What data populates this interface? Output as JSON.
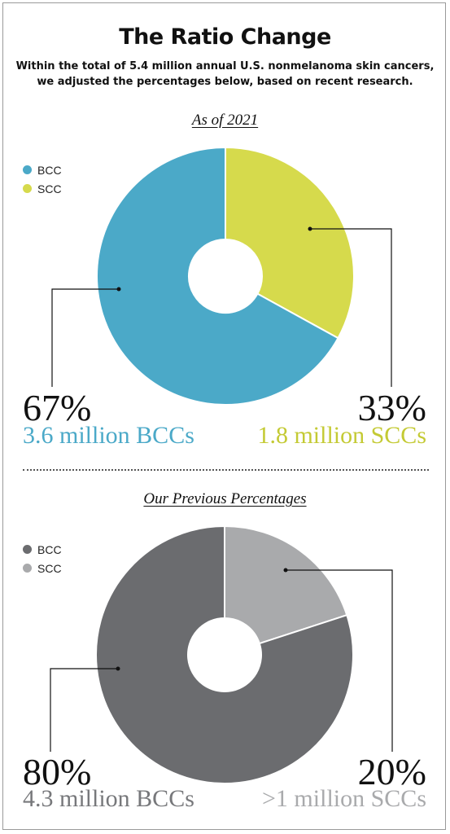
{
  "header": {
    "title": "The Ratio Change",
    "subtitle_line1": "Within the total of 5.4 million annual U.S. nonmelanoma skin cancers,",
    "subtitle_line2": "we adjusted the percentages below, based on recent research."
  },
  "chart_data": [
    {
      "type": "pie",
      "title": "As of 2021",
      "categories": [
        "BCC",
        "SCC"
      ],
      "values": [
        67,
        33
      ],
      "colors": [
        "#4ba9c8",
        "#d6da4c"
      ],
      "legend": [
        "BCC",
        "SCC"
      ],
      "legend_position": "top-left",
      "labels": [
        {
          "percent": "67%",
          "detail": "3.6 million BCCs",
          "color": "#4ba9c8"
        },
        {
          "percent": "33%",
          "detail": "1.8 million SCCs",
          "color": "#c4ca34"
        }
      ]
    },
    {
      "type": "pie",
      "title": "Our Previous Percentages",
      "categories": [
        "BCC",
        "SCC"
      ],
      "values": [
        80,
        20
      ],
      "colors": [
        "#6b6c6f",
        "#a9aaac"
      ],
      "legend": [
        "BCC",
        "SCC"
      ],
      "legend_position": "top-left",
      "labels": [
        {
          "percent": "80%",
          "detail": "4.3 million BCCs",
          "color": "#77787b"
        },
        {
          "percent": "20%",
          "detail": ">1 million SCCs",
          "color": "#a9aaac"
        }
      ]
    }
  ]
}
